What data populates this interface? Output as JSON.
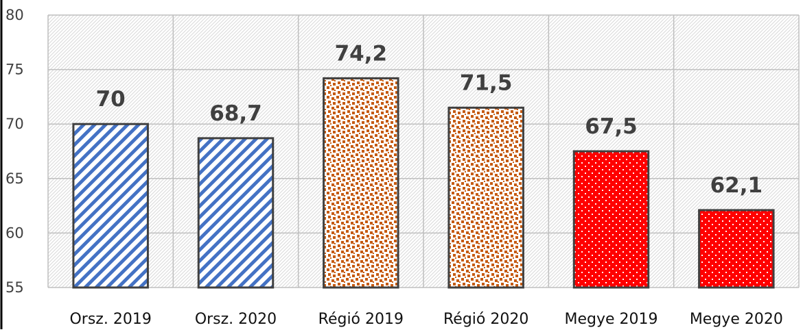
{
  "chart_data": {
    "type": "bar",
    "categories": [
      "Orsz. 2019",
      "Orsz. 2020",
      "Régió 2019",
      "Régió 2020",
      "Megye 2019",
      "Megye 2020"
    ],
    "values": [
      70,
      68.7,
      74.2,
      71.5,
      67.5,
      62.1
    ],
    "data_labels": [
      "70",
      "68,7",
      "74,2",
      "71,5",
      "67,5",
      "62,1"
    ],
    "y_ticks": [
      "55",
      "60",
      "65",
      "70",
      "75",
      "80"
    ],
    "ylim": [
      55,
      80
    ],
    "title": "",
    "xlabel": "",
    "ylabel": "",
    "grid": true,
    "legend": "none",
    "bar_styles": [
      {
        "pattern": "diagonal-stripes",
        "color": "#4472C4"
      },
      {
        "pattern": "diagonal-stripes",
        "color": "#4472C4"
      },
      {
        "pattern": "confetti",
        "color": "#C55A11"
      },
      {
        "pattern": "confetti",
        "color": "#C55A11"
      },
      {
        "pattern": "dotted",
        "color": "#FF0000"
      },
      {
        "pattern": "dotted",
        "color": "#FF0000"
      }
    ]
  }
}
